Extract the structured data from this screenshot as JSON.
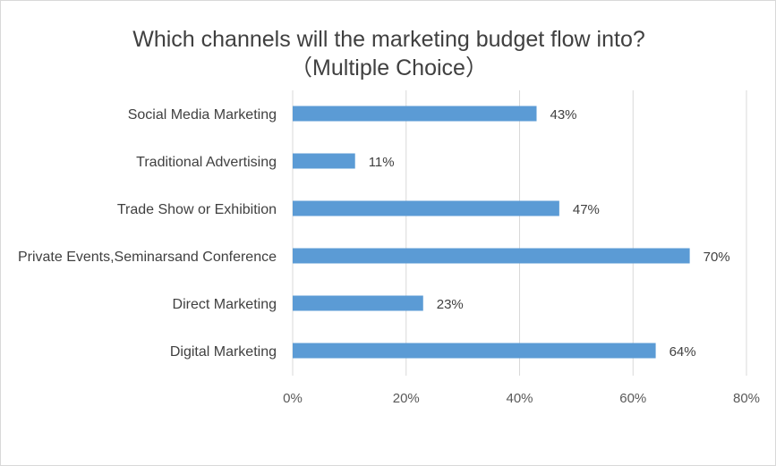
{
  "chart_data": {
    "type": "bar",
    "orientation": "horizontal",
    "title": "Which channels will the marketing budget flow into?",
    "subtitle": "（Multiple Choice）",
    "categories": [
      "Social Media Marketing",
      "Traditional Advertising",
      "Trade Show or Exhibition",
      "Private Events,Seminarsand Conference",
      "Direct Marketing",
      "Digital Marketing"
    ],
    "values": [
      43,
      11,
      47,
      70,
      23,
      64
    ],
    "value_labels": [
      "43%",
      "11%",
      "47%",
      "70%",
      "23%",
      "64%"
    ],
    "xlim": [
      0,
      80
    ],
    "xticks": [
      0,
      20,
      40,
      60,
      80
    ],
    "xtick_labels": [
      "0%",
      "20%",
      "40%",
      "60%",
      "80%"
    ],
    "grid": "vertical",
    "legend": "none",
    "bar_color": "#5b9bd5",
    "grid_color": "#d9d9d9"
  }
}
